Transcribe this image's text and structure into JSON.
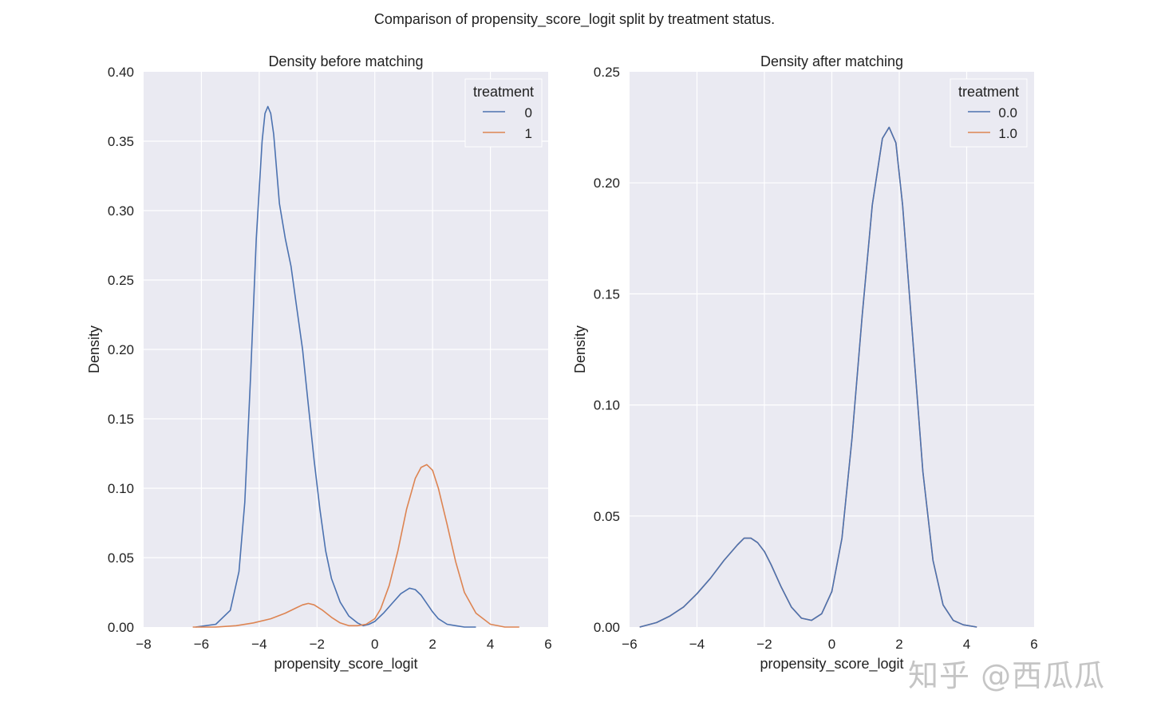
{
  "figure": {
    "suptitle": "Comparison of propensity_score_logit split by treatment status.",
    "watermark": "知乎 @西瓜瓜"
  },
  "colors": {
    "series0": "#4c72b0",
    "series1": "#dd8452",
    "plot_bg": "#eaeaf2",
    "grid": "#ffffff"
  },
  "chart_data": [
    {
      "type": "line",
      "title": "Density before matching",
      "xlabel": "propensity_score_logit",
      "ylabel": "Density",
      "xlim": [
        -8,
        6
      ],
      "ylim": [
        0,
        0.4
      ],
      "xticks": [
        -8,
        -6,
        -4,
        -2,
        0,
        2,
        4,
        6
      ],
      "xtick_labels": [
        "−8",
        "−6",
        "−4",
        "−2",
        "0",
        "2",
        "4",
        "6"
      ],
      "yticks": [
        0,
        0.05,
        0.1,
        0.15,
        0.2,
        0.25,
        0.3,
        0.35,
        0.4
      ],
      "ytick_labels": [
        "0.00",
        "0.05",
        "0.10",
        "0.15",
        "0.20",
        "0.25",
        "0.30",
        "0.35",
        "0.40"
      ],
      "grid": true,
      "legend": {
        "title": "treatment",
        "position": "top-right"
      },
      "series": [
        {
          "name": "0",
          "color": "#4c72b0",
          "x": [
            -6.2,
            -5.5,
            -5.0,
            -4.7,
            -4.5,
            -4.3,
            -4.1,
            -3.9,
            -3.8,
            -3.7,
            -3.6,
            -3.5,
            -3.4,
            -3.3,
            -3.1,
            -2.9,
            -2.7,
            -2.5,
            -2.3,
            -2.1,
            -1.9,
            -1.7,
            -1.5,
            -1.2,
            -0.9,
            -0.6,
            -0.4,
            -0.2,
            0.0,
            0.3,
            0.6,
            0.9,
            1.2,
            1.4,
            1.6,
            1.8,
            2.0,
            2.2,
            2.5,
            2.8,
            3.1,
            3.5
          ],
          "y": [
            0.0,
            0.002,
            0.012,
            0.04,
            0.09,
            0.18,
            0.28,
            0.35,
            0.37,
            0.375,
            0.37,
            0.355,
            0.33,
            0.305,
            0.28,
            0.26,
            0.23,
            0.2,
            0.16,
            0.12,
            0.085,
            0.055,
            0.035,
            0.018,
            0.008,
            0.003,
            0.001,
            0.002,
            0.004,
            0.01,
            0.017,
            0.024,
            0.028,
            0.027,
            0.023,
            0.017,
            0.011,
            0.006,
            0.002,
            0.001,
            0.0,
            0.0
          ]
        },
        {
          "name": "1",
          "color": "#dd8452",
          "x": [
            -6.3,
            -5.5,
            -4.8,
            -4.2,
            -3.6,
            -3.1,
            -2.7,
            -2.5,
            -2.3,
            -2.1,
            -1.8,
            -1.5,
            -1.2,
            -0.9,
            -0.6,
            -0.3,
            0.0,
            0.2,
            0.5,
            0.8,
            1.1,
            1.4,
            1.6,
            1.8,
            2.0,
            2.2,
            2.5,
            2.8,
            3.1,
            3.5,
            4.0,
            4.5,
            5.0
          ],
          "y": [
            0.0,
            0.0,
            0.001,
            0.003,
            0.006,
            0.01,
            0.014,
            0.016,
            0.017,
            0.016,
            0.012,
            0.007,
            0.003,
            0.001,
            0.001,
            0.002,
            0.006,
            0.013,
            0.03,
            0.055,
            0.085,
            0.107,
            0.115,
            0.117,
            0.113,
            0.1,
            0.074,
            0.047,
            0.025,
            0.01,
            0.002,
            0.0,
            0.0
          ]
        }
      ]
    },
    {
      "type": "line",
      "title": "Density after matching",
      "xlabel": "propensity_score_logit",
      "ylabel": "Density",
      "xlim": [
        -6,
        6
      ],
      "ylim": [
        0,
        0.25
      ],
      "xticks": [
        -6,
        -4,
        -2,
        0,
        2,
        4,
        6
      ],
      "xtick_labels": [
        "−6",
        "−4",
        "−2",
        "0",
        "2",
        "4",
        "6"
      ],
      "yticks": [
        0,
        0.05,
        0.1,
        0.15,
        0.2,
        0.25
      ],
      "ytick_labels": [
        "0.00",
        "0.05",
        "0.10",
        "0.15",
        "0.20",
        "0.25"
      ],
      "grid": true,
      "legend": {
        "title": "treatment",
        "position": "top-right"
      },
      "series": [
        {
          "name": "1.0",
          "color": "#dd8452",
          "x": [
            -5.7,
            -5.2,
            -4.8,
            -4.4,
            -4.0,
            -3.6,
            -3.2,
            -2.8,
            -2.6,
            -2.4,
            -2.2,
            -2.0,
            -1.8,
            -1.5,
            -1.2,
            -0.9,
            -0.6,
            -0.3,
            0.0,
            0.3,
            0.6,
            0.9,
            1.2,
            1.5,
            1.7,
            1.9,
            2.1,
            2.4,
            2.7,
            3.0,
            3.3,
            3.6,
            3.9,
            4.3
          ],
          "y": [
            0.0,
            0.002,
            0.005,
            0.009,
            0.015,
            0.022,
            0.03,
            0.037,
            0.04,
            0.04,
            0.038,
            0.034,
            0.028,
            0.018,
            0.009,
            0.004,
            0.003,
            0.006,
            0.016,
            0.04,
            0.085,
            0.14,
            0.19,
            0.22,
            0.225,
            0.218,
            0.19,
            0.13,
            0.07,
            0.03,
            0.01,
            0.003,
            0.001,
            0.0
          ]
        },
        {
          "name": "0.0",
          "color": "#4c72b0",
          "x": [
            -5.7,
            -5.2,
            -4.8,
            -4.4,
            -4.0,
            -3.6,
            -3.2,
            -2.8,
            -2.6,
            -2.4,
            -2.2,
            -2.0,
            -1.8,
            -1.5,
            -1.2,
            -0.9,
            -0.6,
            -0.3,
            0.0,
            0.3,
            0.6,
            0.9,
            1.2,
            1.5,
            1.7,
            1.9,
            2.1,
            2.4,
            2.7,
            3.0,
            3.3,
            3.6,
            3.9,
            4.3
          ],
          "y": [
            0.0,
            0.002,
            0.005,
            0.009,
            0.015,
            0.022,
            0.03,
            0.037,
            0.04,
            0.04,
            0.038,
            0.034,
            0.028,
            0.018,
            0.009,
            0.004,
            0.003,
            0.006,
            0.016,
            0.04,
            0.085,
            0.14,
            0.19,
            0.22,
            0.225,
            0.218,
            0.19,
            0.13,
            0.07,
            0.03,
            0.01,
            0.003,
            0.001,
            0.0
          ]
        }
      ],
      "legend_order": [
        "0.0",
        "1.0"
      ]
    }
  ]
}
